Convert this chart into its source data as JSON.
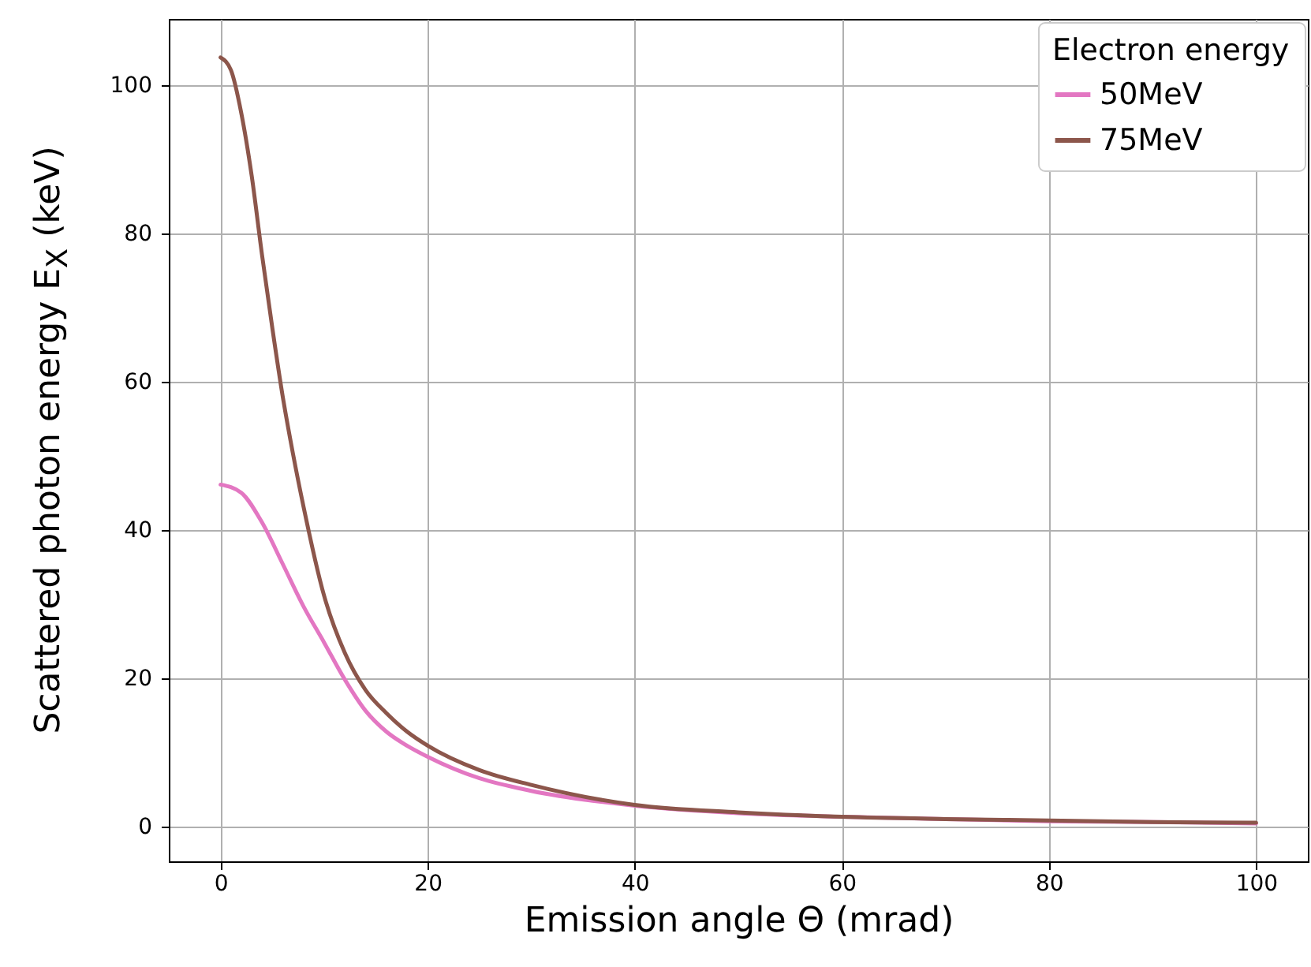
{
  "chart_data": {
    "type": "line",
    "xlabel": "Emission angle Θ (mrad)",
    "ylabel": "Scattered photon energy E$_{X}$ (keV)",
    "legend_title": "Electron energy",
    "series": [
      {
        "name": "50MeV",
        "color": "#e377c2",
        "x": [
          0,
          2,
          4,
          6,
          8,
          10,
          12,
          14,
          16,
          18,
          20,
          25,
          30,
          40,
          50,
          60,
          70,
          80,
          90,
          100
        ],
        "values": [
          46.1,
          45,
          41,
          35.4,
          29.7,
          24.8,
          19.8,
          15.6,
          12.8,
          10.9,
          9.4,
          6.5,
          4.8,
          2.8,
          1.8,
          1.3,
          1.0,
          0.7,
          0.6,
          0.4
        ]
      },
      {
        "name": "75MeV",
        "color": "#8c564b",
        "x": [
          0,
          1,
          2,
          3,
          4,
          5,
          6,
          7,
          8,
          10,
          12,
          14,
          16,
          18,
          20,
          25,
          30,
          40,
          50,
          60,
          70,
          80,
          90,
          100
        ],
        "values": [
          103.7,
          102,
          96.2,
          87.8,
          77.1,
          67.2,
          58,
          50.2,
          43.2,
          31.1,
          23.4,
          18.4,
          15.3,
          12.8,
          10.9,
          7.6,
          5.6,
          2.9,
          1.9,
          1.3,
          1.0,
          0.8,
          0.6,
          0.5
        ]
      }
    ],
    "xlim": [
      -5,
      105
    ],
    "xticks": [
      0,
      20,
      40,
      60,
      80,
      100
    ],
    "ylim": [
      -4.7,
      108.9
    ],
    "yticks": [
      0,
      20,
      40,
      60,
      80,
      100
    ],
    "grid": true,
    "legend": "top right",
    "line_style": "solid"
  }
}
